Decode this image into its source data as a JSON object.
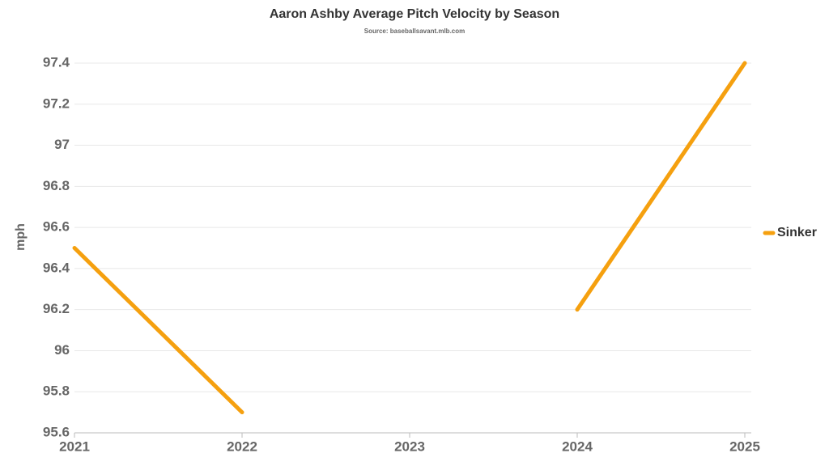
{
  "chart_data": {
    "type": "line",
    "title": "Aaron Ashby Average Pitch Velocity by Season",
    "subtitle": "Source: baseballsavant.mlb.com",
    "y_label": "mph",
    "x": [
      2021,
      2022,
      2023,
      2024,
      2025
    ],
    "xlim": [
      2021,
      2025
    ],
    "xticks": [
      2021,
      2022,
      2023,
      2024,
      2025
    ],
    "series": [
      {
        "name": "Sinker",
        "color": "#f5a00f",
        "values": [
          96.5,
          95.7,
          null,
          96.2,
          97.4
        ]
      }
    ],
    "ylim": [
      95.6,
      97.4
    ],
    "yticks": [
      95.6,
      95.8,
      96,
      96.2,
      96.4,
      96.6,
      96.8,
      97,
      97.2,
      97.4
    ],
    "grid": true,
    "legend": "right"
  }
}
